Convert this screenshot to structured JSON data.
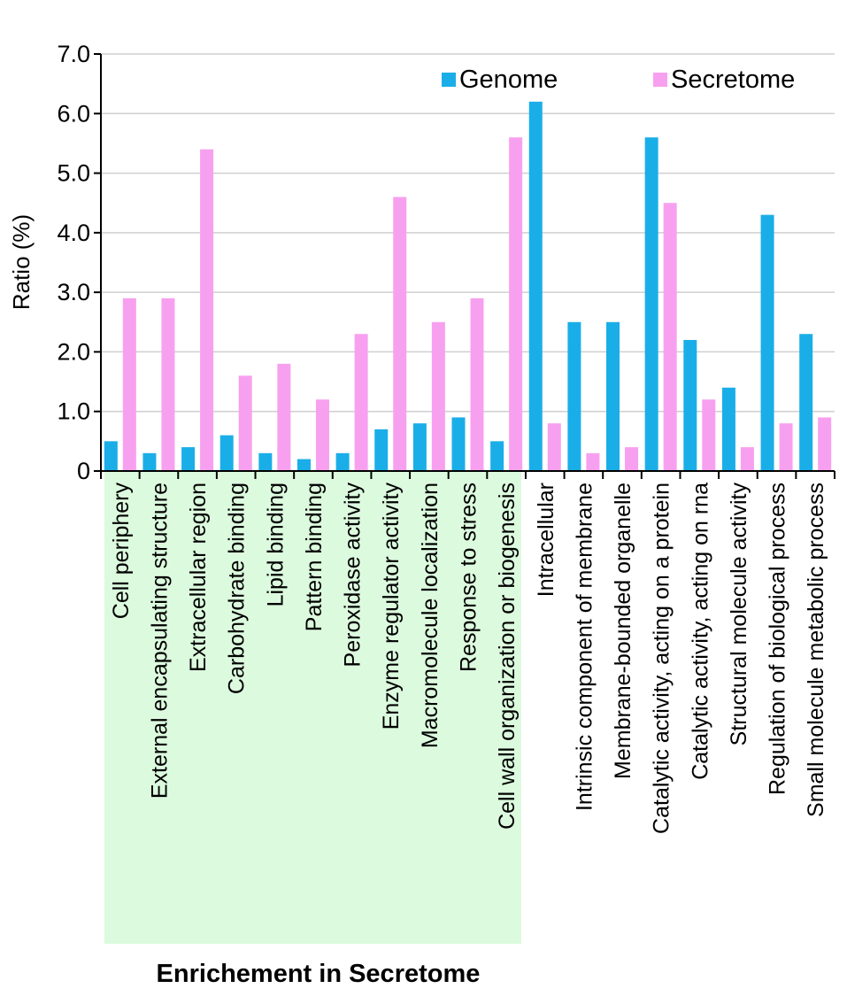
{
  "chart_data": {
    "type": "bar",
    "title": "",
    "xlabel": "",
    "ylabel": "Ratio (%)",
    "ylim": [
      0,
      7
    ],
    "y_ticks": [
      {
        "value": 0,
        "label": "0"
      },
      {
        "value": 1,
        "label": "1.0"
      },
      {
        "value": 2,
        "label": "2.0"
      },
      {
        "value": 3,
        "label": "3.0"
      },
      {
        "value": 4,
        "label": "4.0"
      },
      {
        "value": 5,
        "label": "5.0"
      },
      {
        "value": 6,
        "label": "6.0"
      },
      {
        "value": 7,
        "label": "7.0"
      }
    ],
    "grid": true,
    "legend_position": "top-right",
    "categories": [
      "Cell periphery",
      "External encapsulating structure",
      "Extracellular region",
      "Carbohydrate binding",
      "Lipid binding",
      "Pattern binding",
      "Peroxidase activity",
      "Enzyme regulator activity",
      "Macromolecule localization",
      "Response to stress",
      "Cell wall organization or biogenesis",
      "Intracellular",
      "Intrinsic component of membrane",
      "Membrane-bounded organelle",
      "Catalytic activity, acting on a protein",
      "Catalytic activity, acting on rna",
      "Structural molecule activity",
      "Regulation of biological process",
      "Small molecule metabolic process"
    ],
    "series": [
      {
        "name": "Genome",
        "color": "#1aaee8",
        "values": [
          0.5,
          0.3,
          0.4,
          0.6,
          0.3,
          0.2,
          0.3,
          0.7,
          0.8,
          0.9,
          0.5,
          6.2,
          2.5,
          2.5,
          5.6,
          2.2,
          1.4,
          4.3,
          2.3
        ]
      },
      {
        "name": "Secretome",
        "color": "#f8a0f0",
        "values": [
          2.9,
          2.9,
          5.4,
          1.6,
          1.8,
          1.2,
          2.3,
          4.6,
          2.5,
          2.9,
          5.6,
          0.8,
          0.3,
          0.4,
          4.5,
          1.2,
          0.4,
          0.8,
          0.9
        ]
      }
    ],
    "highlight_group": {
      "label": "Enrichement in Secretome",
      "first_index": 0,
      "last_index": 10,
      "color": "#dcfade"
    }
  }
}
